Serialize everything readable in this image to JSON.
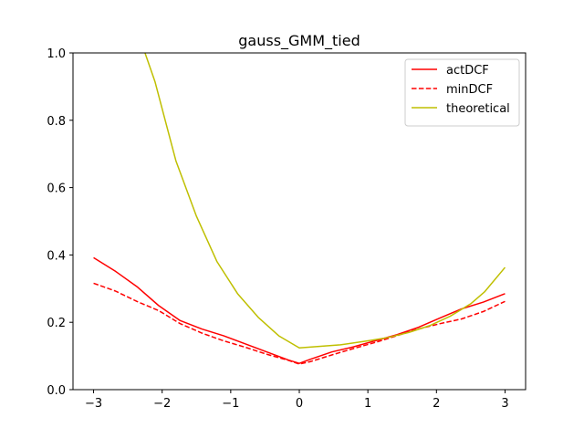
{
  "chart_data": {
    "type": "line",
    "title": "gauss_GMM_tied",
    "xlabel": "",
    "ylabel": "",
    "xlim": [
      -3.3,
      3.3
    ],
    "ylim": [
      0.0,
      1.0
    ],
    "xticks": [
      -3,
      -2,
      -1,
      0,
      1,
      2,
      3
    ],
    "yticks": [
      0.0,
      0.2,
      0.4,
      0.6,
      0.8,
      1.0
    ],
    "xtick_labels": [
      "−3",
      "−2",
      "−1",
      "0",
      "1",
      "2",
      "3"
    ],
    "ytick_labels": [
      "0.0",
      "0.2",
      "0.4",
      "0.6",
      "0.8",
      "1.0"
    ],
    "grid": false,
    "legend_position": "top-right",
    "series": [
      {
        "name": "actDCF",
        "color": "#ff0000",
        "style": "solid",
        "x": [
          -3.0,
          -2.684,
          -2.368,
          -2.053,
          -1.737,
          -1.421,
          -1.105,
          -0.789,
          -0.474,
          -0.158,
          0.0,
          0.158,
          0.474,
          0.789,
          1.105,
          1.421,
          1.737,
          2.053,
          2.368,
          2.684,
          3.0
        ],
        "y": [
          0.392,
          0.352,
          0.306,
          0.25,
          0.205,
          0.18,
          0.16,
          0.136,
          0.112,
          0.088,
          0.078,
          0.09,
          0.112,
          0.127,
          0.145,
          0.163,
          0.185,
          0.213,
          0.24,
          0.26,
          0.285
        ]
      },
      {
        "name": "minDCF",
        "color": "#ff0000",
        "style": "dashed",
        "x": [
          -3.0,
          -2.684,
          -2.368,
          -2.053,
          -1.737,
          -1.421,
          -1.105,
          -0.789,
          -0.474,
          -0.158,
          0.0,
          0.158,
          0.474,
          0.789,
          1.105,
          1.421,
          1.737,
          2.053,
          2.368,
          2.684,
          3.0
        ],
        "y": [
          0.316,
          0.293,
          0.262,
          0.235,
          0.196,
          0.168,
          0.145,
          0.126,
          0.105,
          0.087,
          0.076,
          0.083,
          0.103,
          0.122,
          0.14,
          0.16,
          0.18,
          0.196,
          0.21,
          0.232,
          0.262
        ]
      },
      {
        "name": "theoretical",
        "color": "#bfbf00",
        "style": "solid",
        "x": [
          -2.25,
          -2.105,
          -1.8,
          -1.5,
          -1.2,
          -0.9,
          -0.6,
          -0.3,
          0.0,
          0.6,
          1.0,
          1.3,
          1.6,
          1.9,
          2.2,
          2.5,
          2.7,
          3.0
        ],
        "y": [
          1.0,
          0.915,
          0.68,
          0.515,
          0.38,
          0.285,
          0.215,
          0.16,
          0.124,
          0.133,
          0.145,
          0.155,
          0.17,
          0.19,
          0.218,
          0.255,
          0.29,
          0.363
        ]
      }
    ]
  }
}
